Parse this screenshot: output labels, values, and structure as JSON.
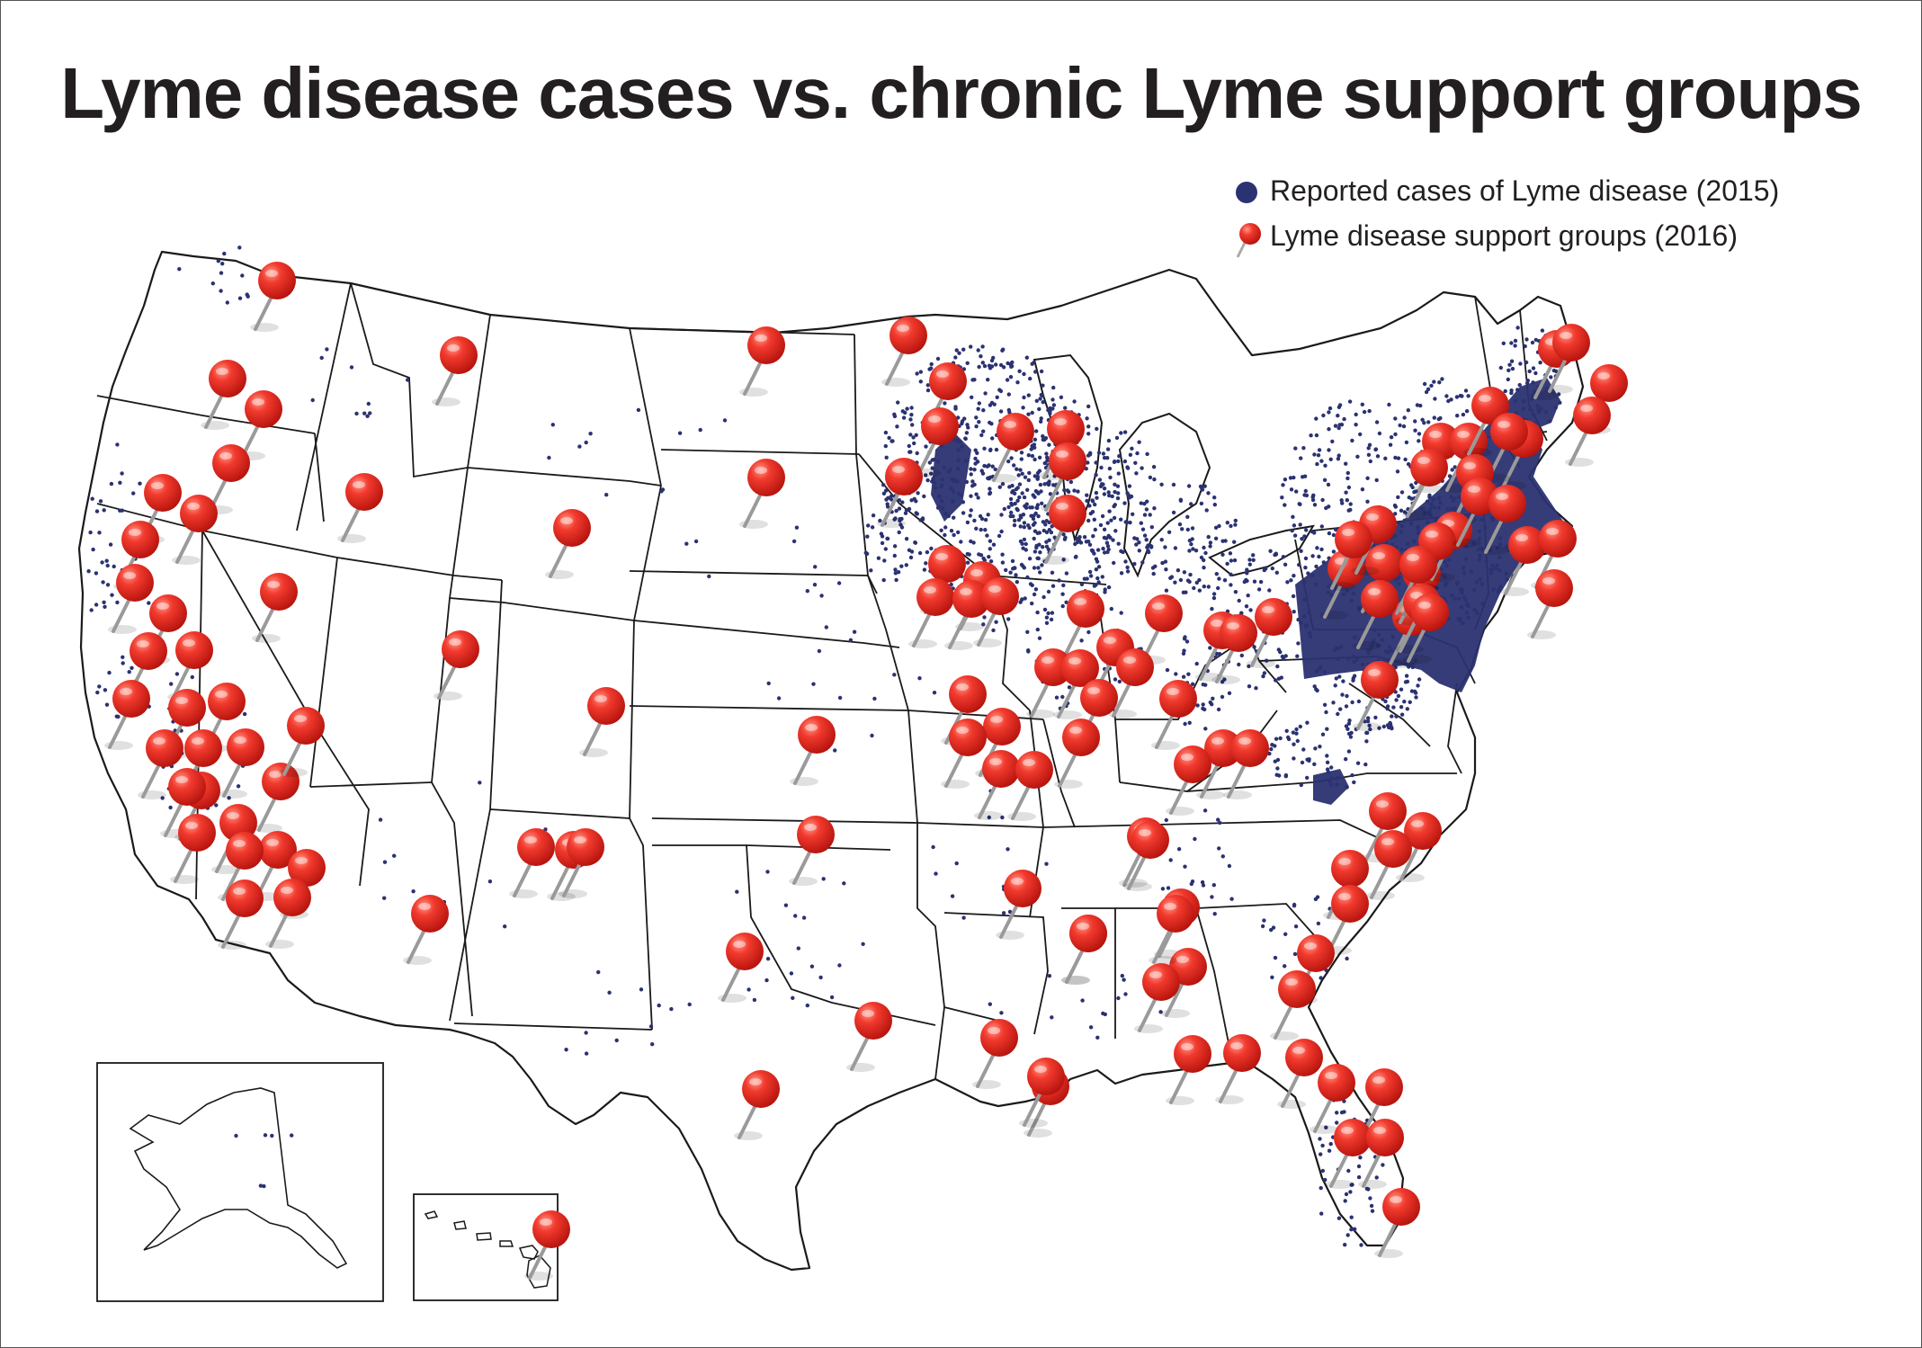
{
  "title": "Lyme disease cases vs. chronic Lyme support groups",
  "legend": [
    {
      "label": "Reported cases of Lyme disease (2015)",
      "icon": "navy-dot-icon",
      "color": "#2b3271"
    },
    {
      "label": "Lyme disease support groups (2016)",
      "icon": "red-pushpin-icon",
      "color": "#e8261f"
    }
  ],
  "colors": {
    "case_dot": "#2b3271",
    "pin": "#e8261f",
    "pin_highlight": "#ff8a7a",
    "border": "#1a1a1a"
  },
  "insets": [
    "Alaska",
    "Hawaii"
  ]
}
